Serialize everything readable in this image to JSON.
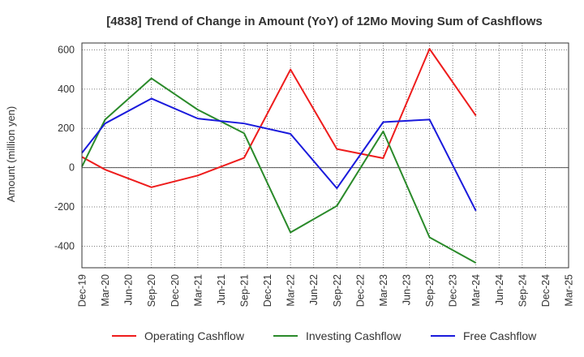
{
  "chart_data": {
    "type": "line",
    "title": "[4838]  Trend of Change in Amount (YoY) of 12Mo Moving Sum of Cashflows",
    "xlabel": "",
    "ylabel": "Amount (million yen)",
    "categories": [
      "Dec-19",
      "Mar-20",
      "Jun-20",
      "Sep-20",
      "Dec-20",
      "Mar-21",
      "Jun-21",
      "Sep-21",
      "Dec-21",
      "Mar-22",
      "Jun-22",
      "Sep-22",
      "Dec-22",
      "Mar-23",
      "Jun-23",
      "Sep-23",
      "Dec-23",
      "Mar-24",
      "Jun-24",
      "Sep-24",
      "Dec-24",
      "Mar-25"
    ],
    "ylim": [
      -510,
      635
    ],
    "yticks": [
      -400,
      -200,
      0,
      200,
      400,
      600
    ],
    "grid": true,
    "legend_position": "bottom",
    "series": [
      {
        "name": "Operating Cashflow",
        "color": "#ee1c1c",
        "points": [
          [
            "Dec-19",
            55
          ],
          [
            "Mar-20",
            -10
          ],
          [
            "Sep-20",
            -100
          ],
          [
            "Mar-21",
            -40
          ],
          [
            "Sep-21",
            50
          ],
          [
            "Mar-22",
            500
          ],
          [
            "Sep-22",
            95
          ],
          [
            "Mar-23",
            48
          ],
          [
            "Sep-23",
            605
          ],
          [
            "Mar-24",
            265
          ]
        ]
      },
      {
        "name": "Investing Cashflow",
        "color": "#2a8a2a",
        "points": [
          [
            "Dec-19",
            5
          ],
          [
            "Mar-20",
            245
          ],
          [
            "Sep-20",
            455
          ],
          [
            "Mar-21",
            295
          ],
          [
            "Sep-21",
            175
          ],
          [
            "Mar-22",
            -330
          ],
          [
            "Sep-22",
            -195
          ],
          [
            "Mar-23",
            185
          ],
          [
            "Sep-23",
            -355
          ],
          [
            "Mar-24",
            -485
          ]
        ]
      },
      {
        "name": "Free Cashflow",
        "color": "#1a1adc",
        "points": [
          [
            "Dec-19",
            75
          ],
          [
            "Mar-20",
            225
          ],
          [
            "Sep-20",
            352
          ],
          [
            "Mar-21",
            250
          ],
          [
            "Sep-21",
            225
          ],
          [
            "Mar-22",
            172
          ],
          [
            "Sep-22",
            -105
          ],
          [
            "Mar-23",
            232
          ],
          [
            "Sep-23",
            245
          ],
          [
            "Mar-24",
            -220
          ]
        ]
      }
    ]
  }
}
